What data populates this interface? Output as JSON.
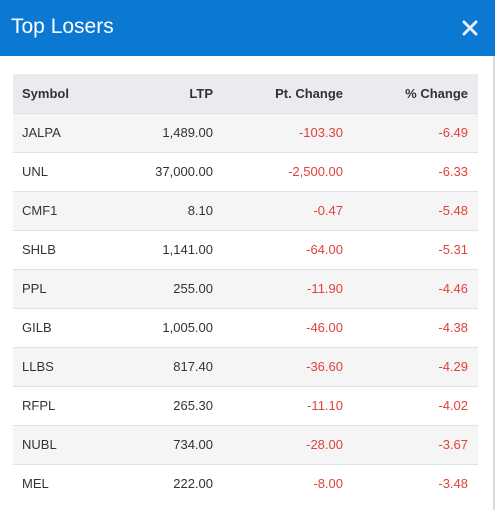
{
  "modal": {
    "title": "Top Losers",
    "close_label": "×"
  },
  "table": {
    "headers": [
      "Symbol",
      "LTP",
      "Pt. Change",
      "% Change"
    ],
    "rows": [
      {
        "symbol": "JALPA",
        "ltp": "1,489.00",
        "pt_change": "-103.30",
        "pct_change": "-6.49"
      },
      {
        "symbol": "UNL",
        "ltp": "37,000.00",
        "pt_change": "-2,500.00",
        "pct_change": "-6.33"
      },
      {
        "symbol": "CMF1",
        "ltp": "8.10",
        "pt_change": "-0.47",
        "pct_change": "-5.48"
      },
      {
        "symbol": "SHLB",
        "ltp": "1,141.00",
        "pt_change": "-64.00",
        "pct_change": "-5.31"
      },
      {
        "symbol": "PPL",
        "ltp": "255.00",
        "pt_change": "-11.90",
        "pct_change": "-4.46"
      },
      {
        "symbol": "GILB",
        "ltp": "1,005.00",
        "pt_change": "-46.00",
        "pct_change": "-4.38"
      },
      {
        "symbol": "LLBS",
        "ltp": "817.40",
        "pt_change": "-36.60",
        "pct_change": "-4.29"
      },
      {
        "symbol": "RFPL",
        "ltp": "265.30",
        "pt_change": "-11.10",
        "pct_change": "-4.02"
      },
      {
        "symbol": "NUBL",
        "ltp": "734.00",
        "pt_change": "-28.00",
        "pct_change": "-3.67"
      },
      {
        "symbol": "MEL",
        "ltp": "222.00",
        "pt_change": "-8.00",
        "pct_change": "-3.48"
      }
    ]
  },
  "colors": {
    "header_bg": "#0b78d1",
    "negative": "#e2413b"
  }
}
